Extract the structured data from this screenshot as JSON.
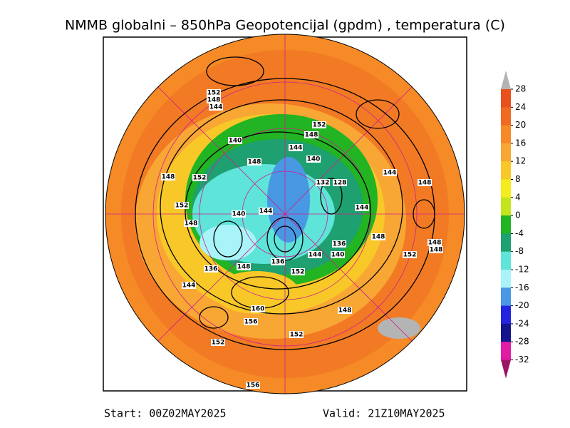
{
  "header": {
    "title": "NMMB globalni – 850hPa Geopotencijal (gpdm) , temperatura (C)"
  },
  "colorbar": {
    "ticks": [
      28,
      24,
      20,
      16,
      12,
      8,
      4,
      0,
      -4,
      -8,
      -12,
      -16,
      -20,
      -24,
      -28,
      -32
    ],
    "colors": [
      "#b4b4b4",
      "#e8501c",
      "#f06a22",
      "#f58a26",
      "#f8a634",
      "#f8c828",
      "#f4ec1c",
      "#c4e41c",
      "#22b422",
      "#1ea070",
      "#5ee4d8",
      "#a8f4f8",
      "#4898e4",
      "#2424e0",
      "#14148c",
      "#e01ca4",
      "#9c1468"
    ]
  },
  "map": {
    "contour_labels": [
      152,
      148,
      144,
      140,
      148,
      152,
      148,
      144,
      140,
      148,
      152,
      144,
      148,
      132,
      128,
      152,
      140,
      144,
      144,
      148,
      148,
      136,
      148,
      148,
      152,
      144,
      140,
      136,
      136,
      148,
      152,
      144,
      148,
      160,
      156,
      152,
      152,
      156
    ]
  },
  "footer": {
    "start": "Start: 00Z02MAY2025",
    "valid": "Valid: 21Z10MAY2025"
  }
}
